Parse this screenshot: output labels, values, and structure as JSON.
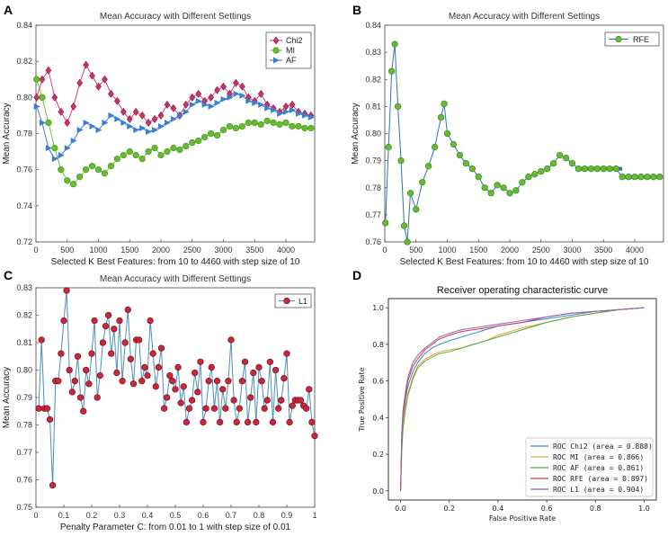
{
  "panel_letters": [
    "A",
    "B",
    "C",
    "D"
  ],
  "colors": {
    "chi2": "#cc3366",
    "mi": "#66bb33",
    "af": "#2a6fc9",
    "af_marker": "#3a7fd5",
    "rfe": "#66bb33",
    "rfe_line": "#3070c0",
    "l1_marker": "#c8283a",
    "l1_line": "#4a90c0",
    "roc_chi2": "#3c86d8",
    "roc_mi": "#f0a030",
    "roc_af": "#55aa33",
    "roc_rfe": "#dd3344",
    "roc_l1": "#8866bb"
  },
  "chart_data": [
    {
      "id": "A",
      "type": "scatter",
      "title": "Mean Accuracy with Different Settings",
      "xlabel": "Selected K Best Features:  from 10 to 4460 with step size of 10",
      "ylabel": "Mean Accuracy",
      "xlim": [
        0,
        4460
      ],
      "ylim": [
        0.72,
        0.84
      ],
      "xticks": [
        0,
        500,
        1000,
        1500,
        2000,
        2500,
        3000,
        3500,
        4000
      ],
      "yticks": [
        0.72,
        0.74,
        0.76,
        0.78,
        0.8,
        0.82,
        0.84
      ],
      "series": [
        {
          "name": "Chi2",
          "marker": "diamond",
          "x": [
            10,
            100,
            200,
            300,
            400,
            500,
            600,
            700,
            800,
            900,
            1000,
            1100,
            1200,
            1300,
            1400,
            1500,
            1600,
            1700,
            1800,
            1900,
            2000,
            2100,
            2200,
            2300,
            2400,
            2500,
            2600,
            2700,
            2800,
            2900,
            3000,
            3100,
            3200,
            3300,
            3400,
            3500,
            3600,
            3700,
            3800,
            3900,
            4000,
            4100,
            4200,
            4300,
            4400
          ],
          "y": [
            0.8,
            0.81,
            0.815,
            0.8,
            0.792,
            0.786,
            0.795,
            0.808,
            0.818,
            0.812,
            0.806,
            0.81,
            0.802,
            0.798,
            0.792,
            0.788,
            0.792,
            0.79,
            0.786,
            0.788,
            0.79,
            0.796,
            0.794,
            0.79,
            0.796,
            0.8,
            0.802,
            0.798,
            0.8,
            0.804,
            0.806,
            0.802,
            0.808,
            0.806,
            0.8,
            0.798,
            0.802,
            0.796,
            0.794,
            0.792,
            0.795,
            0.796,
            0.792,
            0.791,
            0.79
          ]
        },
        {
          "name": "MI",
          "marker": "circle",
          "x": [
            10,
            100,
            200,
            300,
            400,
            500,
            600,
            700,
            800,
            900,
            1000,
            1100,
            1200,
            1300,
            1400,
            1500,
            1600,
            1700,
            1800,
            1900,
            2000,
            2100,
            2200,
            2300,
            2400,
            2500,
            2600,
            2700,
            2800,
            2900,
            3000,
            3100,
            3200,
            3300,
            3400,
            3500,
            3600,
            3700,
            3800,
            3900,
            4000,
            4100,
            4200,
            4300,
            4400
          ],
          "y": [
            0.81,
            0.8,
            0.786,
            0.772,
            0.76,
            0.754,
            0.752,
            0.756,
            0.76,
            0.762,
            0.76,
            0.758,
            0.762,
            0.766,
            0.768,
            0.77,
            0.768,
            0.766,
            0.77,
            0.772,
            0.768,
            0.77,
            0.772,
            0.771,
            0.773,
            0.775,
            0.776,
            0.778,
            0.78,
            0.779,
            0.782,
            0.784,
            0.783,
            0.784,
            0.786,
            0.786,
            0.785,
            0.787,
            0.786,
            0.785,
            0.786,
            0.784,
            0.784,
            0.783,
            0.783
          ]
        },
        {
          "name": "AF",
          "marker": "triangle-right",
          "x": [
            10,
            100,
            200,
            300,
            400,
            500,
            600,
            700,
            800,
            900,
            1000,
            1100,
            1200,
            1300,
            1400,
            1500,
            1600,
            1700,
            1800,
            1900,
            2000,
            2100,
            2200,
            2300,
            2400,
            2500,
            2600,
            2700,
            2800,
            2900,
            3000,
            3100,
            3200,
            3300,
            3400,
            3500,
            3600,
            3700,
            3800,
            3900,
            4000,
            4100,
            4200,
            4300,
            4400
          ],
          "y": [
            0.795,
            0.786,
            0.772,
            0.766,
            0.768,
            0.772,
            0.776,
            0.782,
            0.786,
            0.784,
            0.782,
            0.786,
            0.79,
            0.788,
            0.786,
            0.784,
            0.782,
            0.783,
            0.781,
            0.782,
            0.784,
            0.786,
            0.788,
            0.79,
            0.792,
            0.796,
            0.798,
            0.796,
            0.795,
            0.797,
            0.799,
            0.8,
            0.802,
            0.801,
            0.798,
            0.797,
            0.796,
            0.794,
            0.793,
            0.791,
            0.792,
            0.793,
            0.791,
            0.79,
            0.789
          ]
        }
      ]
    },
    {
      "id": "B",
      "type": "scatter",
      "title": "Mean Accuracy with Different Settings",
      "xlabel": "Selected K Best Features:  from 10 to 4460 with step size of 10",
      "ylabel": "Mean Accuracy",
      "xlim": [
        0,
        4460
      ],
      "ylim": [
        0.76,
        0.84
      ],
      "xticks": [
        0,
        500,
        1000,
        1500,
        2000,
        2500,
        3000,
        3500,
        4000
      ],
      "yticks": [
        0.76,
        0.77,
        0.78,
        0.79,
        0.8,
        0.81,
        0.82,
        0.83,
        0.84
      ],
      "series": [
        {
          "name": "RFE",
          "marker": "circle",
          "x": [
            10,
            60,
            110,
            160,
            210,
            260,
            310,
            360,
            410,
            500,
            600,
            700,
            800,
            900,
            950,
            1000,
            1100,
            1200,
            1300,
            1400,
            1500,
            1600,
            1700,
            1800,
            1900,
            2000,
            2100,
            2200,
            2300,
            2400,
            2500,
            2600,
            2700,
            2800,
            2900,
            3000,
            3100,
            3200,
            3300,
            3400,
            3500,
            3600,
            3700,
            3800,
            3900,
            4000,
            4100,
            4200,
            4300,
            4400
          ],
          "y": [
            0.767,
            0.795,
            0.823,
            0.833,
            0.81,
            0.79,
            0.766,
            0.76,
            0.778,
            0.772,
            0.782,
            0.788,
            0.795,
            0.806,
            0.811,
            0.8,
            0.796,
            0.792,
            0.789,
            0.787,
            0.784,
            0.78,
            0.778,
            0.781,
            0.78,
            0.778,
            0.779,
            0.782,
            0.784,
            0.785,
            0.786,
            0.787,
            0.789,
            0.792,
            0.791,
            0.789,
            0.787,
            0.787,
            0.787,
            0.787,
            0.787,
            0.787,
            0.787,
            0.784,
            0.784,
            0.784,
            0.784,
            0.784,
            0.784,
            0.784
          ]
        }
      ]
    },
    {
      "id": "C",
      "type": "line",
      "title": "Mean Accuracy with Different Settings",
      "xlabel": "Penalty Parameter C:  from 0.01 to 1 with step size of 0.01",
      "ylabel": "Mean Accuracy",
      "xlim": [
        0,
        1
      ],
      "ylim": [
        0.75,
        0.83
      ],
      "xticks": [
        0,
        0.1,
        0.2,
        0.3,
        0.4,
        0.5,
        0.6,
        0.7,
        0.8,
        0.9,
        1
      ],
      "yticks": [
        0.75,
        0.76,
        0.77,
        0.78,
        0.79,
        0.8,
        0.81,
        0.82,
        0.83
      ],
      "series": [
        {
          "name": "L1",
          "marker": "circle",
          "x": [
            0.01,
            0.02,
            0.03,
            0.04,
            0.05,
            0.06,
            0.07,
            0.08,
            0.09,
            0.1,
            0.11,
            0.12,
            0.13,
            0.14,
            0.15,
            0.16,
            0.17,
            0.18,
            0.19,
            0.2,
            0.21,
            0.22,
            0.23,
            0.24,
            0.25,
            0.26,
            0.27,
            0.28,
            0.29,
            0.3,
            0.31,
            0.32,
            0.33,
            0.34,
            0.35,
            0.36,
            0.37,
            0.38,
            0.39,
            0.4,
            0.41,
            0.42,
            0.43,
            0.44,
            0.45,
            0.46,
            0.47,
            0.48,
            0.49,
            0.5,
            0.51,
            0.52,
            0.53,
            0.54,
            0.55,
            0.56,
            0.57,
            0.58,
            0.59,
            0.6,
            0.61,
            0.62,
            0.63,
            0.64,
            0.65,
            0.66,
            0.67,
            0.68,
            0.69,
            0.7,
            0.71,
            0.72,
            0.73,
            0.74,
            0.75,
            0.76,
            0.77,
            0.78,
            0.79,
            0.8,
            0.81,
            0.82,
            0.83,
            0.84,
            0.85,
            0.86,
            0.87,
            0.88,
            0.89,
            0.9,
            0.91,
            0.92,
            0.93,
            0.94,
            0.95,
            0.96,
            0.97,
            0.98,
            0.99,
            1.0
          ],
          "y": [
            0.786,
            0.811,
            0.786,
            0.786,
            0.782,
            0.758,
            0.796,
            0.796,
            0.806,
            0.818,
            0.829,
            0.8,
            0.792,
            0.796,
            0.805,
            0.79,
            0.785,
            0.8,
            0.795,
            0.806,
            0.818,
            0.79,
            0.798,
            0.81,
            0.816,
            0.82,
            0.806,
            0.815,
            0.799,
            0.818,
            0.796,
            0.81,
            0.822,
            0.804,
            0.795,
            0.811,
            0.811,
            0.796,
            0.801,
            0.798,
            0.818,
            0.806,
            0.794,
            0.801,
            0.808,
            0.786,
            0.79,
            0.798,
            0.796,
            0.793,
            0.801,
            0.788,
            0.794,
            0.781,
            0.786,
            0.789,
            0.799,
            0.792,
            0.803,
            0.781,
            0.786,
            0.796,
            0.801,
            0.786,
            0.796,
            0.781,
            0.793,
            0.786,
            0.796,
            0.811,
            0.789,
            0.781,
            0.786,
            0.796,
            0.803,
            0.781,
            0.79,
            0.799,
            0.781,
            0.801,
            0.796,
            0.786,
            0.789,
            0.803,
            0.781,
            0.8,
            0.786,
            0.789,
            0.797,
            0.806,
            0.781,
            0.787,
            0.789,
            0.789,
            0.789,
            0.787,
            0.786,
            0.793,
            0.781,
            0.776
          ]
        }
      ]
    },
    {
      "id": "D",
      "type": "line",
      "title": "Receiver operating characteristic curve",
      "xlabel": "False Positive Rate",
      "ylabel": "True Positive Rate",
      "xlim": [
        -0.05,
        1.05
      ],
      "ylim": [
        -0.05,
        1.05
      ],
      "xticks": [
        0.0,
        0.2,
        0.4,
        0.6,
        0.8,
        1.0
      ],
      "yticks": [
        0.0,
        0.2,
        0.4,
        0.6,
        0.8,
        1.0
      ],
      "x": [
        0,
        0.005,
        0.01,
        0.02,
        0.03,
        0.05,
        0.07,
        0.1,
        0.13,
        0.16,
        0.2,
        0.25,
        0.3,
        0.35,
        0.4,
        0.45,
        0.5,
        0.6,
        0.7,
        0.8,
        0.9,
        1.0
      ],
      "series": [
        {
          "name": "ROC  Chi2 (area = 0.888)",
          "y": [
            0,
            0.28,
            0.4,
            0.5,
            0.57,
            0.65,
            0.7,
            0.75,
            0.78,
            0.8,
            0.82,
            0.84,
            0.86,
            0.88,
            0.9,
            0.91,
            0.92,
            0.94,
            0.96,
            0.98,
            0.99,
            1.0
          ]
        },
        {
          "name": "ROC  MI (area = 0.866)",
          "y": [
            0,
            0.24,
            0.36,
            0.46,
            0.53,
            0.62,
            0.68,
            0.72,
            0.74,
            0.76,
            0.77,
            0.78,
            0.8,
            0.82,
            0.85,
            0.87,
            0.89,
            0.92,
            0.95,
            0.97,
            0.99,
            1.0
          ]
        },
        {
          "name": "ROC  AF (area = 0.861)",
          "y": [
            0,
            0.22,
            0.34,
            0.44,
            0.52,
            0.61,
            0.67,
            0.71,
            0.73,
            0.75,
            0.76,
            0.78,
            0.8,
            0.82,
            0.84,
            0.86,
            0.88,
            0.92,
            0.95,
            0.97,
            0.99,
            1.0
          ]
        },
        {
          "name": "ROC  RFE (area = 0.897)",
          "y": [
            0,
            0.3,
            0.42,
            0.52,
            0.6,
            0.68,
            0.72,
            0.77,
            0.8,
            0.83,
            0.85,
            0.87,
            0.88,
            0.89,
            0.9,
            0.91,
            0.92,
            0.95,
            0.97,
            0.98,
            0.99,
            1.0
          ]
        },
        {
          "name": "ROC  L1 (area = 0.904)",
          "y": [
            0,
            0.32,
            0.44,
            0.54,
            0.62,
            0.7,
            0.74,
            0.78,
            0.81,
            0.84,
            0.86,
            0.88,
            0.89,
            0.9,
            0.91,
            0.92,
            0.93,
            0.95,
            0.97,
            0.98,
            0.99,
            1.0
          ]
        }
      ]
    }
  ]
}
